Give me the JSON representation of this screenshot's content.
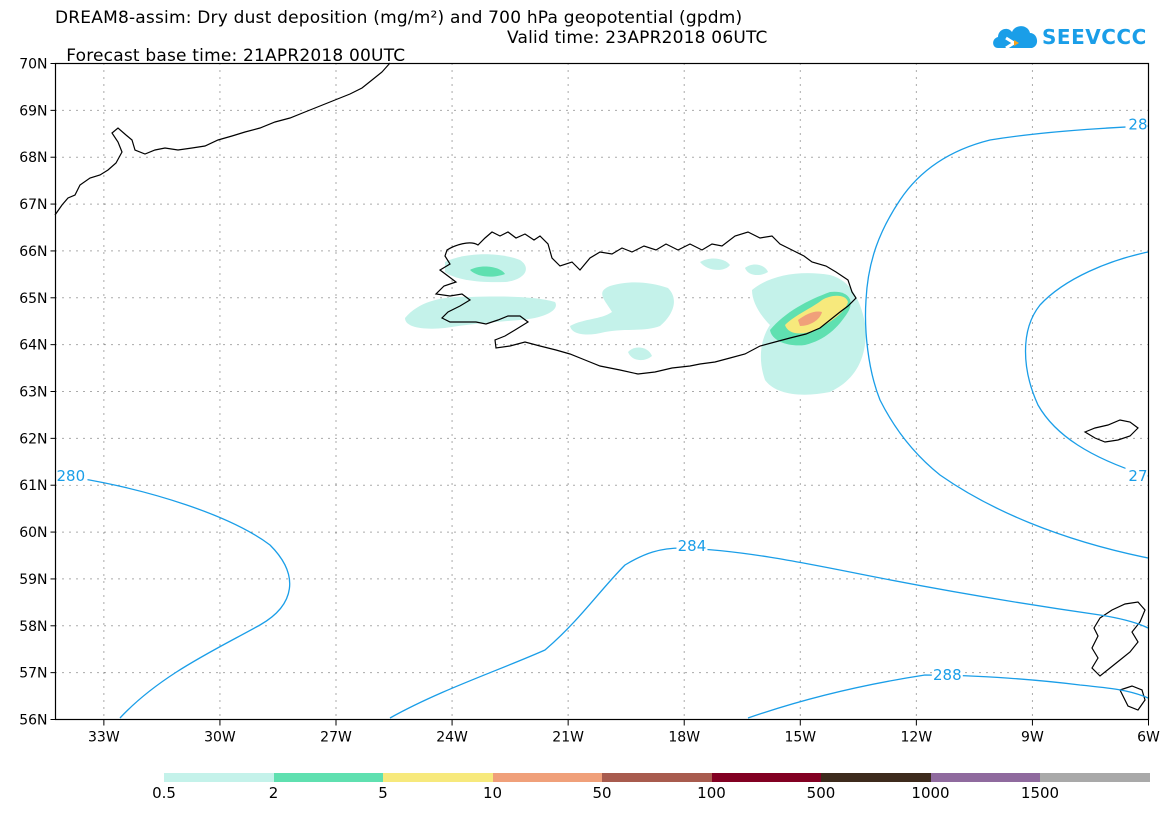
{
  "header": {
    "title_line1": "DREAM8-assim: Dry dust deposition (mg/m²) and 700 hPa geopotential (gpdm)",
    "forecast_base": "Forecast base time: 21APR2018 00UTC",
    "valid_time": "Valid time: 23APR2018 06UTC"
  },
  "logo": {
    "text": "SEEVCCC",
    "color": "#1a9ee8"
  },
  "map": {
    "lat_labels": [
      "70N",
      "69N",
      "68N",
      "67N",
      "66N",
      "65N",
      "64N",
      "63N",
      "62N",
      "61N",
      "60N",
      "59N",
      "58N",
      "57N",
      "56N"
    ],
    "lon_labels": [
      "33W",
      "30W",
      "27W",
      "24W",
      "21W",
      "18W",
      "15W",
      "12W",
      "9W",
      "6W"
    ],
    "lat_range": [
      56,
      70
    ],
    "lon_range": [
      -34.25,
      -6
    ],
    "contour_color": "#1a9ee8",
    "contour_labels": [
      {
        "text": "280",
        "lon": -34.25,
        "lat": 61.2
      },
      {
        "text": "284",
        "lon": -17.8,
        "lat": 59.7
      },
      {
        "text": "288",
        "lon": -11.2,
        "lat": 56.95
      },
      {
        "text": "28",
        "lon": -6.25,
        "lat": 68.7
      },
      {
        "text": "27",
        "lon": -6.25,
        "lat": 61.2
      }
    ]
  },
  "legend": {
    "colors": [
      "#c4f2ea",
      "#5fe0b0",
      "#f7e97c",
      "#f0a07a",
      "#a85b4e",
      "#820022",
      "#3d2a1c",
      "#8f6a9e",
      "#a9a9a9"
    ],
    "labels": [
      "0.5",
      "2",
      "5",
      "10",
      "50",
      "100",
      "500",
      "1000",
      "1500"
    ]
  }
}
